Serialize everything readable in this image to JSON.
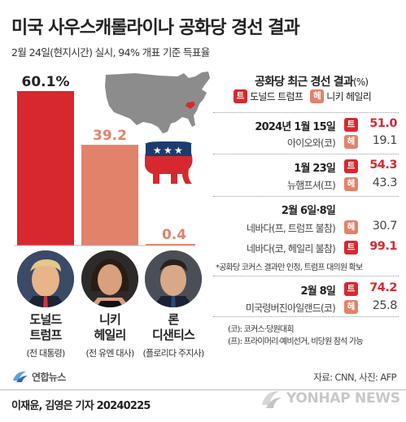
{
  "header": {
    "title": "미국 사우스캐롤라이나 공화당 경선 결과",
    "subtitle": "2월 24일(현지시간) 실시, 94% 개표 기준 득표율"
  },
  "chart_data": {
    "type": "bar",
    "categories": [
      "도널드 트럼프",
      "니키 헤일리",
      "론 디샌티스"
    ],
    "values": [
      60.1,
      39.2,
      0.4
    ],
    "value_labels": [
      "60.1%",
      "39.2",
      "0.4"
    ],
    "colors": [
      "#d7282f",
      "#e2826a",
      "#e2826a"
    ],
    "ylim": [
      0,
      62
    ]
  },
  "candidates": [
    {
      "name_line1": "도널드",
      "name_line2": "트럼프",
      "role": "(전 대통령)"
    },
    {
      "name_line1": "니키",
      "name_line2": "헤일리",
      "role": "(전 유엔 대사)"
    },
    {
      "name_line1": "론",
      "name_line2": "디샌티스",
      "role": "(플로리다 주지사)"
    }
  ],
  "results": {
    "title": "공화당 최근 경선 결과",
    "unit": "(%)",
    "legend": [
      {
        "tag": "트",
        "label": "도널드 트럼프"
      },
      {
        "tag": "헤",
        "label": "니키 헤일리"
      }
    ],
    "rows": [
      {
        "date": "2024년 1월 15일",
        "tag": "트",
        "value": "51.0"
      },
      {
        "label": "아이오와(코)",
        "tag": "헤",
        "value": "19.1"
      },
      {
        "date": "1월 23일",
        "tag": "트",
        "value": "54.3"
      },
      {
        "label": "뉴햄프셔(프)",
        "tag": "헤",
        "value": "43.3"
      },
      {
        "date": "2월 6일·8일"
      },
      {
        "label": "네바다(프, 트럼프 불참)",
        "tag": "헤",
        "value": "30.7"
      },
      {
        "label": "네바다(코, 헤일리 불참)",
        "tag": "트",
        "value": "99.1"
      },
      {
        "date": "2월 8일",
        "tag": "트",
        "value": "74.2"
      },
      {
        "label": "미국령버진아일랜드(코)",
        "tag": "헤",
        "value": "25.8"
      }
    ],
    "note_asterisk": "*공화당 코커스 결과만 인정, 트럼프 대의원 확보",
    "abbr_1": "(코): 코커스·당원대회",
    "abbr_2": "(프): 프라이머리·예비선거, 비당원 참석 가능"
  },
  "footer": {
    "logo_text": "연합뉴스",
    "source": "자료: CNN, 사진: AFP",
    "credit": "이재윤, 김영은 기자  20240225",
    "watermark": "YONHAP NEWS"
  },
  "colors": {
    "trump": "#d7282f",
    "haley": "#e2826a",
    "map": "#8c8c8c",
    "sc_highlight": "#d7282f"
  },
  "icons": {
    "map": "us-map-icon",
    "elephant": "gop-elephant-icon"
  }
}
